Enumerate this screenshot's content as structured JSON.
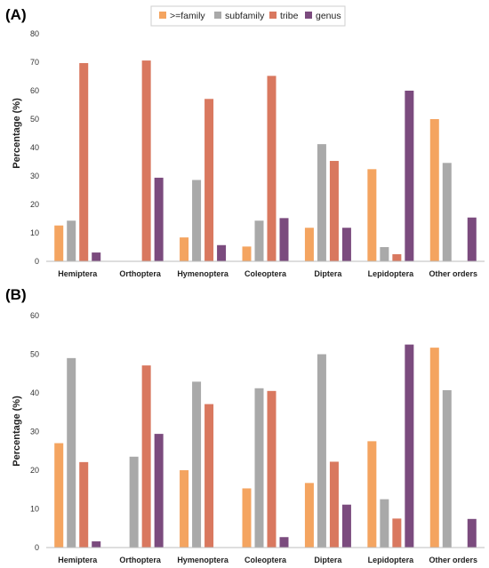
{
  "legend": {
    "items": [
      {
        "label": ">=family",
        "color": "#f4a460"
      },
      {
        "label": "subfamily",
        "color": "#a9a9a9"
      },
      {
        "label": "tribe",
        "color": "#d9785f"
      },
      {
        "label": "genus",
        "color": "#7b4b7e"
      }
    ]
  },
  "chart_data": [
    {
      "type": "bar",
      "panel_label": "(A)",
      "ylabel": "Percentage (%)",
      "ylim": [
        0,
        80
      ],
      "yticks": [
        0,
        10,
        20,
        30,
        40,
        50,
        60,
        70,
        80
      ],
      "categories": [
        "Hemiptera",
        "Orthoptera",
        "Hymenoptera",
        "Coleoptera",
        "Diptera",
        "Lepidoptera",
        "Other orders"
      ],
      "series": [
        {
          "name": ">=family",
          "color": "#f4a460",
          "values": [
            12.6,
            0,
            8.4,
            5.2,
            11.8,
            32.4,
            50.0
          ]
        },
        {
          "name": "subfamily",
          "color": "#a9a9a9",
          "values": [
            14.3,
            0,
            28.6,
            14.3,
            41.2,
            5.0,
            34.6
          ]
        },
        {
          "name": "tribe",
          "color": "#d9785f",
          "values": [
            69.7,
            70.6,
            57.1,
            65.2,
            35.3,
            2.5,
            0
          ]
        },
        {
          "name": "genus",
          "color": "#7b4b7e",
          "values": [
            3.1,
            29.4,
            5.7,
            15.2,
            11.8,
            60.0,
            15.4
          ]
        }
      ]
    },
    {
      "type": "bar",
      "panel_label": "(B)",
      "ylabel": "Percentage (%)",
      "ylim": [
        0,
        60
      ],
      "yticks": [
        0,
        10,
        20,
        30,
        40,
        50,
        60
      ],
      "categories": [
        "Hemiptera",
        "Orthoptera",
        "Hymenoptera",
        "Coleoptera",
        "Diptera",
        "Lepidoptera",
        "Other orders"
      ],
      "series": [
        {
          "name": ">=family",
          "color": "#f4a460",
          "values": [
            27.0,
            0,
            20.0,
            15.3,
            16.7,
            27.5,
            51.7
          ]
        },
        {
          "name": "subfamily",
          "color": "#a9a9a9",
          "values": [
            49.0,
            23.5,
            42.9,
            41.2,
            50.0,
            12.5,
            40.7
          ]
        },
        {
          "name": "tribe",
          "color": "#d9785f",
          "values": [
            22.1,
            47.1,
            37.1,
            40.5,
            22.2,
            7.5,
            0
          ]
        },
        {
          "name": "genus",
          "color": "#7b4b7e",
          "values": [
            1.6,
            29.4,
            0,
            2.7,
            11.1,
            52.5,
            7.4
          ]
        }
      ]
    }
  ]
}
